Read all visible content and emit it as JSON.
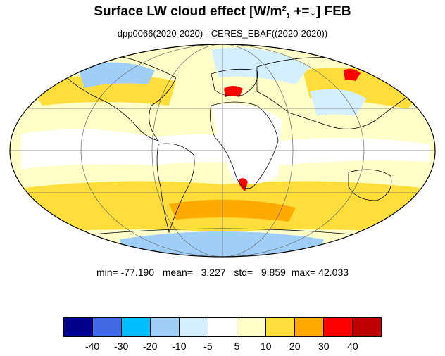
{
  "title": "Surface LW cloud effect [W/m², +=↓]  FEB",
  "subtitle": "dpp0066(2020-2020) - CERES_EBAF((2020-2020))",
  "stats": {
    "min_label": "min=",
    "min": "-77.190",
    "mean_label": "mean=",
    "mean": "3.227",
    "std_label": "std=",
    "std": "9.859",
    "max_label": "max=",
    "max": "42.033"
  },
  "colorbar": {
    "colors": [
      "#00008b",
      "#4169e1",
      "#00bfff",
      "#9fcff8",
      "#d4efff",
      "#ffffff",
      "#ffffc8",
      "#ffde3c",
      "#ffaa00",
      "#ff0000",
      "#c00000"
    ],
    "tick_labels": [
      "-40",
      "-30",
      "-20",
      "-10",
      "-5",
      "5",
      "10",
      "20",
      "30",
      "40"
    ]
  },
  "map": {
    "projection": "mollweide",
    "ocean_background": "#ffffc8",
    "coastline_color": "#000000",
    "gridline_color": "#666666"
  }
}
